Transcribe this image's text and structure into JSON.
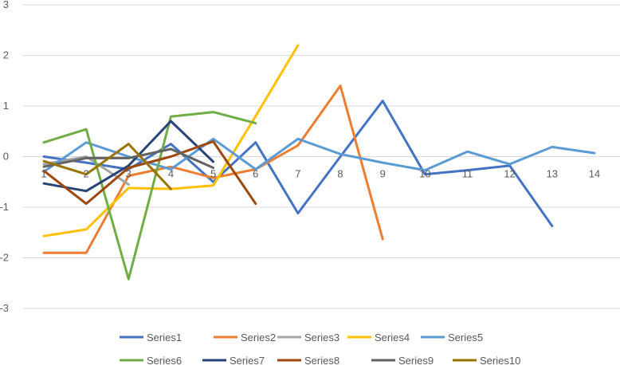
{
  "chart_data": {
    "type": "line",
    "title": "",
    "xlabel": "",
    "ylabel": "",
    "x": [
      1,
      2,
      3,
      4,
      5,
      6,
      7,
      8,
      9,
      10,
      11,
      12,
      13,
      14
    ],
    "xtick_labels": [
      "1",
      "2",
      "3",
      "4",
      "5",
      "6",
      "7",
      "8",
      "9",
      "10",
      "11",
      "12",
      "13",
      "14"
    ],
    "ylim": [
      -3,
      3
    ],
    "yticks": [
      3,
      2,
      1,
      0,
      -1,
      -2,
      -3
    ],
    "ytick_labels": [
      "3",
      "2",
      "1",
      "0",
      "-1",
      "-2",
      "-3"
    ],
    "grid": true,
    "legend_position": "bottom",
    "series": [
      {
        "name": "Series1",
        "color": "#4472C4",
        "values": [
          0.0,
          -0.12,
          -0.25,
          0.25,
          -0.5,
          0.28,
          -1.12,
          0.0,
          1.1,
          -0.35,
          -0.27,
          -0.18,
          -1.37,
          null
        ]
      },
      {
        "name": "Series2",
        "color": "#ED7D31",
        "values": [
          -1.9,
          -1.9,
          -0.38,
          -0.2,
          -0.42,
          -0.25,
          0.22,
          1.4,
          -1.63,
          null,
          null,
          null,
          null,
          null
        ]
      },
      {
        "name": "Series3",
        "color": "#A5A5A5",
        "values": [
          -0.15,
          0.0,
          -0.55,
          null,
          null,
          null,
          null,
          null,
          null,
          null,
          null,
          null,
          null,
          null
        ]
      },
      {
        "name": "Series4",
        "color": "#FFC000",
        "values": [
          -1.57,
          -1.44,
          -0.62,
          -0.64,
          -0.57,
          0.8,
          2.2,
          null,
          null,
          null,
          null,
          null,
          null,
          null
        ]
      },
      {
        "name": "Series5",
        "color": "#5B9BD5",
        "values": [
          -0.3,
          0.28,
          0.0,
          -0.25,
          0.35,
          -0.25,
          0.35,
          0.05,
          -0.12,
          -0.27,
          0.1,
          -0.15,
          0.19,
          0.07
        ]
      },
      {
        "name": "Series6",
        "color": "#70AD47",
        "values": [
          0.28,
          0.54,
          -2.42,
          0.79,
          0.88,
          0.66,
          null,
          null,
          null,
          null,
          null,
          null,
          null,
          null
        ]
      },
      {
        "name": "Series7",
        "color": "#264478",
        "values": [
          -0.53,
          -0.68,
          -0.18,
          0.7,
          -0.1,
          null,
          null,
          null,
          null,
          null,
          null,
          null,
          null,
          null
        ]
      },
      {
        "name": "Series8",
        "color": "#9E480E",
        "values": [
          -0.28,
          -0.93,
          -0.22,
          0.0,
          0.3,
          -0.93,
          null,
          null,
          null,
          null,
          null,
          null,
          null,
          null
        ]
      },
      {
        "name": "Series9",
        "color": "#636363",
        "values": [
          -0.2,
          -0.03,
          -0.03,
          0.15,
          -0.22,
          null,
          null,
          null,
          null,
          null,
          null,
          null,
          null,
          null
        ]
      },
      {
        "name": "Series10",
        "color": "#997300",
        "values": [
          -0.09,
          -0.35,
          0.25,
          -0.64,
          null,
          null,
          null,
          null,
          null,
          null,
          null,
          null,
          null,
          null
        ]
      }
    ]
  }
}
